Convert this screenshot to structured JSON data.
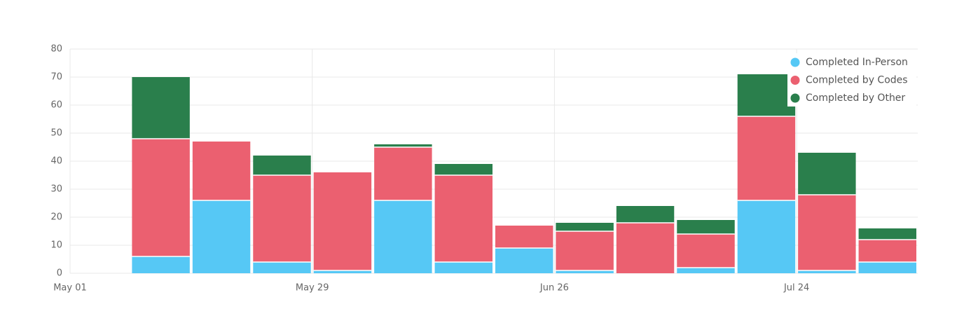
{
  "chart_data": {
    "type": "bar",
    "stacked": true,
    "x": [
      "May 08",
      "May 15",
      "May 22",
      "May 29",
      "Jun 05",
      "Jun 12",
      "Jun 19",
      "Jun 26",
      "Jul 03",
      "Jul 10",
      "Jul 17",
      "Jul 24",
      "Jul 31"
    ],
    "series": [
      {
        "name": "Completed In-Person",
        "color": "#56c8f5",
        "values": [
          6,
          26,
          4,
          1,
          26,
          4,
          9,
          1,
          0,
          2,
          26,
          1,
          4
        ]
      },
      {
        "name": "Completed by Codes",
        "color": "#eb6070",
        "values": [
          42,
          21,
          31,
          35,
          19,
          31,
          8,
          14,
          18,
          12,
          30,
          27,
          8
        ]
      },
      {
        "name": "Completed by Other",
        "color": "#2a7f4c",
        "values": [
          22,
          0,
          7,
          0,
          1,
          4,
          0,
          3,
          6,
          5,
          15,
          15,
          4
        ]
      }
    ],
    "xlim": [
      "May 01",
      "Aug 07"
    ],
    "xticks": [
      "May 01",
      "May 29",
      "Jun 26",
      "Jul 24"
    ],
    "ylim": [
      0,
      80
    ],
    "yticks": [
      0,
      10,
      20,
      30,
      40,
      50,
      60,
      70,
      80
    ],
    "grid": true,
    "legend": "top-right"
  }
}
